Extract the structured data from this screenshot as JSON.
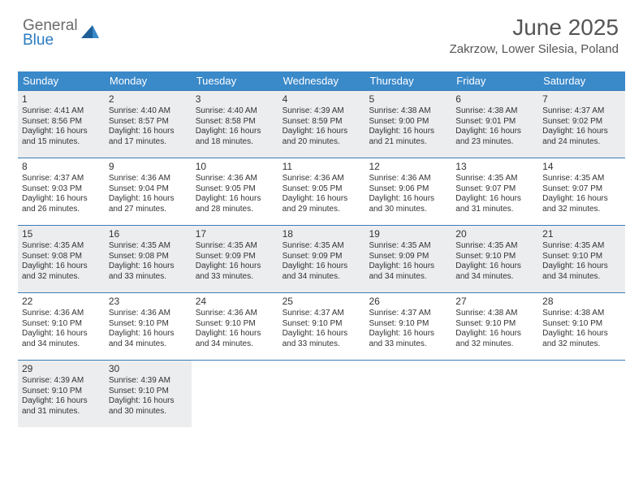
{
  "logo": {
    "general": "General",
    "blue": "Blue"
  },
  "header": {
    "month_title": "June 2025",
    "location": "Zakrzow, Lower Silesia, Poland"
  },
  "calendar": {
    "header_bg": "#3a89c9",
    "days_header_text": "#ffffff",
    "row_border": "#3a7db8",
    "shade_bg": "#ecedee",
    "day_names": [
      "Sunday",
      "Monday",
      "Tuesday",
      "Wednesday",
      "Thursday",
      "Friday",
      "Saturday"
    ],
    "weeks": [
      {
        "shaded": true,
        "days": [
          {
            "n": "1",
            "sr": "Sunrise: 4:41 AM",
            "ss": "Sunset: 8:56 PM",
            "d1": "Daylight: 16 hours",
            "d2": "and 15 minutes."
          },
          {
            "n": "2",
            "sr": "Sunrise: 4:40 AM",
            "ss": "Sunset: 8:57 PM",
            "d1": "Daylight: 16 hours",
            "d2": "and 17 minutes."
          },
          {
            "n": "3",
            "sr": "Sunrise: 4:40 AM",
            "ss": "Sunset: 8:58 PM",
            "d1": "Daylight: 16 hours",
            "d2": "and 18 minutes."
          },
          {
            "n": "4",
            "sr": "Sunrise: 4:39 AM",
            "ss": "Sunset: 8:59 PM",
            "d1": "Daylight: 16 hours",
            "d2": "and 20 minutes."
          },
          {
            "n": "5",
            "sr": "Sunrise: 4:38 AM",
            "ss": "Sunset: 9:00 PM",
            "d1": "Daylight: 16 hours",
            "d2": "and 21 minutes."
          },
          {
            "n": "6",
            "sr": "Sunrise: 4:38 AM",
            "ss": "Sunset: 9:01 PM",
            "d1": "Daylight: 16 hours",
            "d2": "and 23 minutes."
          },
          {
            "n": "7",
            "sr": "Sunrise: 4:37 AM",
            "ss": "Sunset: 9:02 PM",
            "d1": "Daylight: 16 hours",
            "d2": "and 24 minutes."
          }
        ]
      },
      {
        "shaded": false,
        "days": [
          {
            "n": "8",
            "sr": "Sunrise: 4:37 AM",
            "ss": "Sunset: 9:03 PM",
            "d1": "Daylight: 16 hours",
            "d2": "and 26 minutes."
          },
          {
            "n": "9",
            "sr": "Sunrise: 4:36 AM",
            "ss": "Sunset: 9:04 PM",
            "d1": "Daylight: 16 hours",
            "d2": "and 27 minutes."
          },
          {
            "n": "10",
            "sr": "Sunrise: 4:36 AM",
            "ss": "Sunset: 9:05 PM",
            "d1": "Daylight: 16 hours",
            "d2": "and 28 minutes."
          },
          {
            "n": "11",
            "sr": "Sunrise: 4:36 AM",
            "ss": "Sunset: 9:05 PM",
            "d1": "Daylight: 16 hours",
            "d2": "and 29 minutes."
          },
          {
            "n": "12",
            "sr": "Sunrise: 4:36 AM",
            "ss": "Sunset: 9:06 PM",
            "d1": "Daylight: 16 hours",
            "d2": "and 30 minutes."
          },
          {
            "n": "13",
            "sr": "Sunrise: 4:35 AM",
            "ss": "Sunset: 9:07 PM",
            "d1": "Daylight: 16 hours",
            "d2": "and 31 minutes."
          },
          {
            "n": "14",
            "sr": "Sunrise: 4:35 AM",
            "ss": "Sunset: 9:07 PM",
            "d1": "Daylight: 16 hours",
            "d2": "and 32 minutes."
          }
        ]
      },
      {
        "shaded": true,
        "days": [
          {
            "n": "15",
            "sr": "Sunrise: 4:35 AM",
            "ss": "Sunset: 9:08 PM",
            "d1": "Daylight: 16 hours",
            "d2": "and 32 minutes."
          },
          {
            "n": "16",
            "sr": "Sunrise: 4:35 AM",
            "ss": "Sunset: 9:08 PM",
            "d1": "Daylight: 16 hours",
            "d2": "and 33 minutes."
          },
          {
            "n": "17",
            "sr": "Sunrise: 4:35 AM",
            "ss": "Sunset: 9:09 PM",
            "d1": "Daylight: 16 hours",
            "d2": "and 33 minutes."
          },
          {
            "n": "18",
            "sr": "Sunrise: 4:35 AM",
            "ss": "Sunset: 9:09 PM",
            "d1": "Daylight: 16 hours",
            "d2": "and 34 minutes."
          },
          {
            "n": "19",
            "sr": "Sunrise: 4:35 AM",
            "ss": "Sunset: 9:09 PM",
            "d1": "Daylight: 16 hours",
            "d2": "and 34 minutes."
          },
          {
            "n": "20",
            "sr": "Sunrise: 4:35 AM",
            "ss": "Sunset: 9:10 PM",
            "d1": "Daylight: 16 hours",
            "d2": "and 34 minutes."
          },
          {
            "n": "21",
            "sr": "Sunrise: 4:35 AM",
            "ss": "Sunset: 9:10 PM",
            "d1": "Daylight: 16 hours",
            "d2": "and 34 minutes."
          }
        ]
      },
      {
        "shaded": false,
        "days": [
          {
            "n": "22",
            "sr": "Sunrise: 4:36 AM",
            "ss": "Sunset: 9:10 PM",
            "d1": "Daylight: 16 hours",
            "d2": "and 34 minutes."
          },
          {
            "n": "23",
            "sr": "Sunrise: 4:36 AM",
            "ss": "Sunset: 9:10 PM",
            "d1": "Daylight: 16 hours",
            "d2": "and 34 minutes."
          },
          {
            "n": "24",
            "sr": "Sunrise: 4:36 AM",
            "ss": "Sunset: 9:10 PM",
            "d1": "Daylight: 16 hours",
            "d2": "and 34 minutes."
          },
          {
            "n": "25",
            "sr": "Sunrise: 4:37 AM",
            "ss": "Sunset: 9:10 PM",
            "d1": "Daylight: 16 hours",
            "d2": "and 33 minutes."
          },
          {
            "n": "26",
            "sr": "Sunrise: 4:37 AM",
            "ss": "Sunset: 9:10 PM",
            "d1": "Daylight: 16 hours",
            "d2": "and 33 minutes."
          },
          {
            "n": "27",
            "sr": "Sunrise: 4:38 AM",
            "ss": "Sunset: 9:10 PM",
            "d1": "Daylight: 16 hours",
            "d2": "and 32 minutes."
          },
          {
            "n": "28",
            "sr": "Sunrise: 4:38 AM",
            "ss": "Sunset: 9:10 PM",
            "d1": "Daylight: 16 hours",
            "d2": "and 32 minutes."
          }
        ]
      },
      {
        "shaded": true,
        "days": [
          {
            "n": "29",
            "sr": "Sunrise: 4:39 AM",
            "ss": "Sunset: 9:10 PM",
            "d1": "Daylight: 16 hours",
            "d2": "and 31 minutes."
          },
          {
            "n": "30",
            "sr": "Sunrise: 4:39 AM",
            "ss": "Sunset: 9:10 PM",
            "d1": "Daylight: 16 hours",
            "d2": "and 30 minutes."
          },
          {
            "empty": true
          },
          {
            "empty": true
          },
          {
            "empty": true
          },
          {
            "empty": true
          },
          {
            "empty": true
          }
        ]
      }
    ]
  }
}
